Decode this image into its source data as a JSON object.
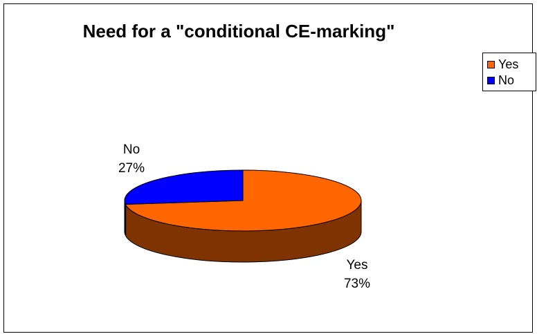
{
  "chart_data": {
    "type": "pie",
    "title": "Need for a \"conditional CE-marking\"",
    "categories": [
      "Yes",
      "No"
    ],
    "values": [
      73,
      27
    ],
    "labels": [
      "73%",
      "27%"
    ],
    "colors": [
      "#FF6600",
      "#0000FF"
    ],
    "side_colors": [
      "#7F3300",
      "#00007F"
    ],
    "legend": {
      "position": "top-right",
      "entries": [
        "Yes",
        "No"
      ]
    },
    "three_d": true
  }
}
